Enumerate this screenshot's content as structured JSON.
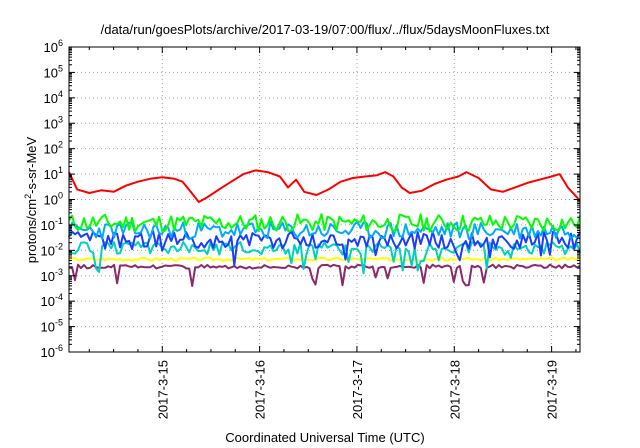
{
  "chart_data": {
    "type": "line",
    "title": "/data/run/goesPlots/archive/2017-03-19/07:00/flux/../flux/5daysMoonFluxes.txt",
    "xlabel": "Coordinated Universal Time (UTC)",
    "ylabel": "protons/cm²-s-sr-MeV",
    "yscale": "log",
    "ylim": [
      1e-06,
      1000000.0
    ],
    "xlim": [
      "2017-03-14T01:00",
      "2017-03-19T07:00"
    ],
    "grid": true,
    "x_ticks": [
      "2017-3-15",
      "2017-3-16",
      "2017-3-17",
      "2017-3-18",
      "2017-3-19"
    ],
    "y_ticks": [
      {
        "base": "10",
        "exp": "6"
      },
      {
        "base": "10",
        "exp": "5"
      },
      {
        "base": "10",
        "exp": "4"
      },
      {
        "base": "10",
        "exp": "3"
      },
      {
        "base": "10",
        "exp": "2"
      },
      {
        "base": "10",
        "exp": "1"
      },
      {
        "base": "10",
        "exp": "0"
      },
      {
        "base": "10",
        "exp": "-1"
      },
      {
        "base": "10",
        "exp": "-2"
      },
      {
        "base": "10",
        "exp": "-3"
      },
      {
        "base": "10",
        "exp": "-4"
      },
      {
        "base": "10",
        "exp": "-5"
      },
      {
        "base": "10",
        "exp": "-6"
      }
    ],
    "series": [
      {
        "color": "#ff0000",
        "points": [
          [
            "2017-03-14T01:00",
            12
          ],
          [
            "2017-03-14T03:00",
            2.5
          ],
          [
            "2017-03-14T06:00",
            1.8
          ],
          [
            "2017-03-14T09:00",
            2.3
          ],
          [
            "2017-03-14T12:00",
            2.0
          ],
          [
            "2017-03-14T15:00",
            3.5
          ],
          [
            "2017-03-14T18:00",
            5.0
          ],
          [
            "2017-03-14T21:00",
            6.5
          ],
          [
            "2017-03-15T00:00",
            7.5
          ],
          [
            "2017-03-15T03:00",
            6.5
          ],
          [
            "2017-03-15T05:00",
            5.0
          ],
          [
            "2017-03-15T07:00",
            2.0
          ],
          [
            "2017-03-15T09:00",
            0.8
          ],
          [
            "2017-03-15T11:00",
            1.2
          ],
          [
            "2017-03-15T14:00",
            2.5
          ],
          [
            "2017-03-15T17:00",
            5.0
          ],
          [
            "2017-03-15T20:00",
            10
          ],
          [
            "2017-03-15T23:00",
            14
          ],
          [
            "2017-03-16T02:00",
            12
          ],
          [
            "2017-03-16T05:00",
            8.0
          ],
          [
            "2017-03-16T07:00",
            3.0
          ],
          [
            "2017-03-16T09:00",
            6.0
          ],
          [
            "2017-03-16T11:00",
            2.0
          ],
          [
            "2017-03-16T14:00",
            1.5
          ],
          [
            "2017-03-16T17:00",
            2.5
          ],
          [
            "2017-03-16T20:00",
            5.0
          ],
          [
            "2017-03-16T23:00",
            7.0
          ],
          [
            "2017-03-17T02:00",
            8.0
          ],
          [
            "2017-03-17T05:00",
            9.0
          ],
          [
            "2017-03-17T07:00",
            12
          ],
          [
            "2017-03-17T09:00",
            8.0
          ],
          [
            "2017-03-17T11:00",
            3.0
          ],
          [
            "2017-03-17T13:00",
            1.8
          ],
          [
            "2017-03-17T16:00",
            2.2
          ],
          [
            "2017-03-17T19:00",
            4.0
          ],
          [
            "2017-03-17T22:00",
            6.0
          ],
          [
            "2017-03-18T01:00",
            8.0
          ],
          [
            "2017-03-18T03:00",
            12
          ],
          [
            "2017-03-18T06:00",
            7.0
          ],
          [
            "2017-03-18T09:00",
            2.5
          ],
          [
            "2017-03-18T12:00",
            2.0
          ],
          [
            "2017-03-18T15:00",
            3.0
          ],
          [
            "2017-03-18T18:00",
            4.5
          ],
          [
            "2017-03-18T21:00",
            6.0
          ],
          [
            "2017-03-19T00:00",
            8.0
          ],
          [
            "2017-03-19T02:00",
            10
          ],
          [
            "2017-03-19T04:00",
            3.0
          ],
          [
            "2017-03-19T07:00",
            0.9
          ]
        ]
      },
      {
        "color": "#00ff00",
        "base": 0.12,
        "var": 0.35,
        "seed": 11
      },
      {
        "color": "#00aaff",
        "base": 0.06,
        "var": 0.35,
        "seed": 23
      },
      {
        "color": "#1a3dff",
        "base": 0.025,
        "var": 0.35,
        "seed": 37,
        "dips": true
      },
      {
        "color": "#00d0c0",
        "base": 0.012,
        "var": 0.25,
        "seed": 51,
        "dips": true
      },
      {
        "color": "#ffff00",
        "base": 0.0045,
        "var": 0.06,
        "seed": 67
      },
      {
        "color": "#8b2a6a",
        "base": 0.0023,
        "var": 0.08,
        "seed": 79,
        "dips": true
      }
    ]
  }
}
